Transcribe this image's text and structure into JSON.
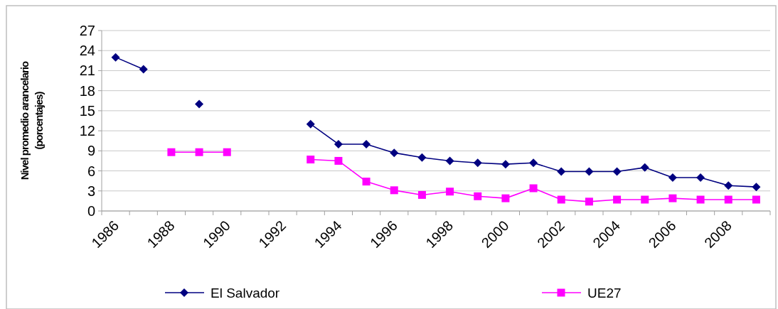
{
  "chart_data": {
    "type": "line",
    "ylabel": "Nivel promedio arancelario\n(porcentajes)",
    "categories": [
      "1986",
      null,
      "1988",
      null,
      "1990",
      null,
      "1992",
      null,
      "1994",
      null,
      "1996",
      null,
      "1998",
      null,
      "2000",
      null,
      "2002",
      null,
      "2004",
      null,
      "2006",
      null,
      "2008",
      null
    ],
    "series": [
      {
        "name": "El Salvador",
        "color": "#000080",
        "marker": "diamond",
        "values": [
          23,
          21.2,
          null,
          16,
          null,
          null,
          null,
          13,
          10,
          10,
          8.7,
          8,
          7.5,
          7.2,
          7,
          7.2,
          5.9,
          5.9,
          5.9,
          6.5,
          5,
          5,
          3.8,
          3.6
        ]
      },
      {
        "name": "UE27",
        "color": "#ff00ff",
        "marker": "square",
        "values": [
          null,
          null,
          8.8,
          8.8,
          8.8,
          null,
          null,
          7.7,
          7.5,
          4.4,
          3.1,
          2.4,
          2.9,
          2.2,
          1.9,
          3.4,
          1.7,
          1.4,
          1.7,
          1.7,
          1.9,
          1.7,
          1.7,
          1.7
        ]
      }
    ],
    "ylim": [
      0,
      27
    ],
    "yticks": [
      0,
      3,
      6,
      9,
      12,
      15,
      18,
      21,
      24,
      27
    ],
    "grid": "y",
    "legend": "bottom"
  }
}
